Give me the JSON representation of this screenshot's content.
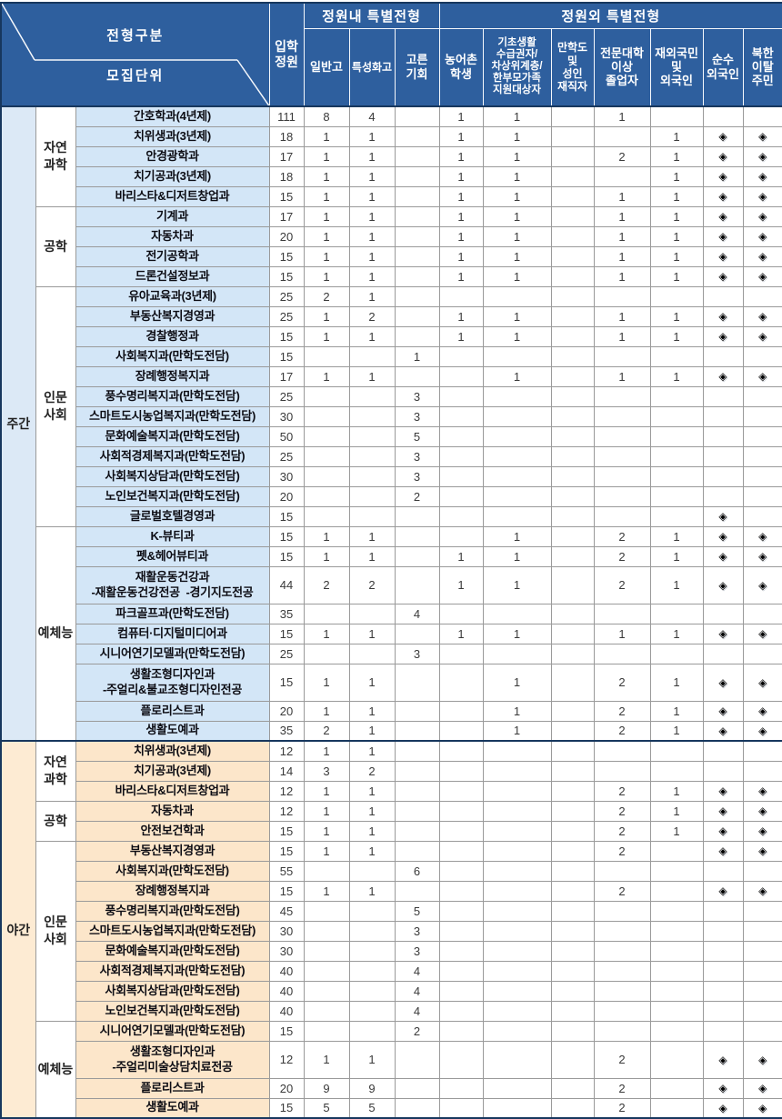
{
  "header": {
    "corner_top": "전형구분",
    "corner_bottom": "모집단위",
    "quota_col": "입학\n정원",
    "group_within": "정원내  특별전형",
    "group_outside": "정원외  특별전형",
    "columns_within": [
      "일반고",
      "특성화고",
      "고른\n기회"
    ],
    "columns_outside": [
      "농어촌\n학생",
      "기초생활\n수급권자/\n차상위계층/\n한부모가족\n지원대상자",
      "만학도\n및\n성인\n재직자",
      "전문대학\n이상\n졸업자",
      "재외국민\n및\n외국인",
      "순수\n외국인",
      "북한\n이탈\n주민"
    ]
  },
  "symbols": {
    "diamond": "◈"
  },
  "colors": {
    "header_blue": "#2e5f9e",
    "day_band": "#dce9f6",
    "day_dept": "#d3e6f7",
    "night_band": "#fdebd3",
    "night_dept": "#fce6ca",
    "frame": "#17375e"
  },
  "sections": [
    {
      "label": "주간",
      "theme": "day",
      "groups": [
        {
          "label": "자연\n과학",
          "rows": [
            {
              "dept": "간호학과(4년제)",
              "values": [
                "111",
                "8",
                "4",
                "",
                "1",
                "1",
                "",
                "1",
                "",
                "",
                ""
              ]
            },
            {
              "dept": "치위생과(3년제)",
              "values": [
                "18",
                "1",
                "1",
                "",
                "1",
                "1",
                "",
                "",
                "1",
                "◈",
                "◈"
              ]
            },
            {
              "dept": "안경광학과",
              "values": [
                "17",
                "1",
                "1",
                "",
                "1",
                "1",
                "",
                "2",
                "1",
                "◈",
                "◈"
              ]
            },
            {
              "dept": "치기공과(3년제)",
              "values": [
                "18",
                "1",
                "1",
                "",
                "1",
                "1",
                "",
                "",
                "1",
                "◈",
                "◈"
              ]
            },
            {
              "dept": "바리스타&디저트창업과",
              "values": [
                "15",
                "1",
                "1",
                "",
                "1",
                "1",
                "",
                "1",
                "1",
                "◈",
                "◈"
              ]
            }
          ]
        },
        {
          "label": "공학",
          "rows": [
            {
              "dept": "기계과",
              "values": [
                "17",
                "1",
                "1",
                "",
                "1",
                "1",
                "",
                "1",
                "1",
                "◈",
                "◈"
              ]
            },
            {
              "dept": "자동차과",
              "values": [
                "20",
                "1",
                "1",
                "",
                "1",
                "1",
                "",
                "1",
                "1",
                "◈",
                "◈"
              ]
            },
            {
              "dept": "전기공학과",
              "values": [
                "15",
                "1",
                "1",
                "",
                "1",
                "1",
                "",
                "1",
                "1",
                "◈",
                "◈"
              ]
            },
            {
              "dept": "드론건설정보과",
              "values": [
                "15",
                "1",
                "1",
                "",
                "1",
                "1",
                "",
                "1",
                "1",
                "◈",
                "◈"
              ]
            }
          ]
        },
        {
          "label": "인문\n사회",
          "rows": [
            {
              "dept": "유아교육과(3년제)",
              "values": [
                "25",
                "2",
                "1",
                "",
                "",
                "",
                "",
                "",
                "",
                "",
                ""
              ]
            },
            {
              "dept": "부동산복지경영과",
              "values": [
                "25",
                "1",
                "2",
                "",
                "1",
                "1",
                "",
                "1",
                "1",
                "◈",
                "◈"
              ]
            },
            {
              "dept": "경찰행정과",
              "values": [
                "15",
                "1",
                "1",
                "",
                "1",
                "1",
                "",
                "1",
                "1",
                "◈",
                "◈"
              ]
            },
            {
              "dept": "사회복지과(만학도전담)",
              "values": [
                "15",
                "",
                "",
                "1",
                "",
                "",
                "",
                "",
                "",
                "",
                ""
              ]
            },
            {
              "dept": "장례행정복지과",
              "values": [
                "17",
                "1",
                "1",
                "",
                "",
                "1",
                "",
                "1",
                "1",
                "◈",
                "◈"
              ]
            },
            {
              "dept": "풍수명리복지과(만학도전담)",
              "values": [
                "25",
                "",
                "",
                "3",
                "",
                "",
                "",
                "",
                "",
                "",
                ""
              ]
            },
            {
              "dept": "스마트도시농업복지과(만학도전담)",
              "values": [
                "30",
                "",
                "",
                "3",
                "",
                "",
                "",
                "",
                "",
                "",
                ""
              ]
            },
            {
              "dept": "문화예술복지과(만학도전담)",
              "values": [
                "50",
                "",
                "",
                "5",
                "",
                "",
                "",
                "",
                "",
                "",
                ""
              ]
            },
            {
              "dept": "사회적경제복지과(만학도전담)",
              "values": [
                "25",
                "",
                "",
                "3",
                "",
                "",
                "",
                "",
                "",
                "",
                ""
              ]
            },
            {
              "dept": "사회복지상담과(만학도전담)",
              "values": [
                "30",
                "",
                "",
                "3",
                "",
                "",
                "",
                "",
                "",
                "",
                ""
              ]
            },
            {
              "dept": "노인보건복지과(만학도전담)",
              "values": [
                "20",
                "",
                "",
                "2",
                "",
                "",
                "",
                "",
                "",
                "",
                ""
              ]
            },
            {
              "dept": "글로벌호텔경영과",
              "values": [
                "15",
                "",
                "",
                "",
                "",
                "",
                "",
                "",
                "",
                "◈",
                ""
              ]
            }
          ]
        },
        {
          "label": "예체능",
          "rows": [
            {
              "dept": "K-뷰티과",
              "values": [
                "15",
                "1",
                "1",
                "",
                "",
                "1",
                "",
                "2",
                "1",
                "◈",
                "◈"
              ]
            },
            {
              "dept": "펫&헤어뷰티과",
              "values": [
                "15",
                "1",
                "1",
                "",
                "1",
                "1",
                "",
                "2",
                "1",
                "◈",
                "◈"
              ]
            },
            {
              "dept": "재활운동건강과\n-재활운동건강전공  -경기지도전공",
              "tall": true,
              "values": [
                "44",
                "2",
                "2",
                "",
                "1",
                "1",
                "",
                "2",
                "1",
                "◈",
                "◈"
              ]
            },
            {
              "dept": "파크골프과(만학도전담)",
              "values": [
                "35",
                "",
                "",
                "4",
                "",
                "",
                "",
                "",
                "",
                "",
                ""
              ]
            },
            {
              "dept": "컴퓨터·디지털미디어과",
              "values": [
                "15",
                "1",
                "1",
                "",
                "1",
                "1",
                "",
                "1",
                "1",
                "◈",
                "◈"
              ]
            },
            {
              "dept": "시니어연기모델과(만학도전담)",
              "values": [
                "25",
                "",
                "",
                "3",
                "",
                "",
                "",
                "",
                "",
                "",
                ""
              ]
            },
            {
              "dept": "생활조형디자인과\n-주얼리&불교조형디자인전공",
              "tall": true,
              "values": [
                "15",
                "1",
                "1",
                "",
                "",
                "1",
                "",
                "2",
                "1",
                "◈",
                "◈"
              ]
            },
            {
              "dept": "플로리스트과",
              "values": [
                "20",
                "1",
                "1",
                "",
                "",
                "1",
                "",
                "2",
                "1",
                "◈",
                "◈"
              ]
            },
            {
              "dept": "생활도예과",
              "values": [
                "35",
                "2",
                "1",
                "",
                "",
                "1",
                "",
                "2",
                "1",
                "◈",
                "◈"
              ]
            }
          ]
        }
      ]
    },
    {
      "label": "야간",
      "theme": "night",
      "groups": [
        {
          "label": "자연\n과학",
          "rows": [
            {
              "dept": "치위생과(3년제)",
              "values": [
                "12",
                "1",
                "1",
                "",
                "",
                "",
                "",
                "",
                "",
                "",
                ""
              ]
            },
            {
              "dept": "치기공과(3년제)",
              "values": [
                "14",
                "3",
                "2",
                "",
                "",
                "",
                "",
                "",
                "",
                "",
                ""
              ]
            },
            {
              "dept": "바리스타&디저트창업과",
              "values": [
                "12",
                "1",
                "1",
                "",
                "",
                "",
                "",
                "2",
                "1",
                "◈",
                "◈"
              ]
            }
          ]
        },
        {
          "label": "공학",
          "rows": [
            {
              "dept": "자동차과",
              "values": [
                "12",
                "1",
                "1",
                "",
                "",
                "",
                "",
                "2",
                "1",
                "◈",
                "◈"
              ]
            },
            {
              "dept": "안전보건학과",
              "values": [
                "15",
                "1",
                "1",
                "",
                "",
                "",
                "",
                "2",
                "1",
                "◈",
                "◈"
              ]
            }
          ]
        },
        {
          "label": "인문\n사회",
          "rows": [
            {
              "dept": "부동산복지경영과",
              "values": [
                "15",
                "1",
                "1",
                "",
                "",
                "",
                "",
                "2",
                "",
                "◈",
                "◈"
              ]
            },
            {
              "dept": "사회복지과(만학도전담)",
              "values": [
                "55",
                "",
                "",
                "6",
                "",
                "",
                "",
                "",
                "",
                "",
                ""
              ]
            },
            {
              "dept": "장례행정복지과",
              "values": [
                "15",
                "1",
                "1",
                "",
                "",
                "",
                "",
                "2",
                "",
                "◈",
                "◈"
              ]
            },
            {
              "dept": "풍수명리복지과(만학도전담)",
              "values": [
                "45",
                "",
                "",
                "5",
                "",
                "",
                "",
                "",
                "",
                "",
                ""
              ]
            },
            {
              "dept": "스마트도시농업복지과(만학도전담)",
              "values": [
                "30",
                "",
                "",
                "3",
                "",
                "",
                "",
                "",
                "",
                "",
                ""
              ]
            },
            {
              "dept": "문화예술복지과(만학도전담)",
              "values": [
                "30",
                "",
                "",
                "3",
                "",
                "",
                "",
                "",
                "",
                "",
                ""
              ]
            },
            {
              "dept": "사회적경제복지과(만학도전담)",
              "values": [
                "40",
                "",
                "",
                "4",
                "",
                "",
                "",
                "",
                "",
                "",
                ""
              ]
            },
            {
              "dept": "사회복지상담과(만학도전담)",
              "values": [
                "40",
                "",
                "",
                "4",
                "",
                "",
                "",
                "",
                "",
                "",
                ""
              ]
            },
            {
              "dept": "노인보건복지과(만학도전담)",
              "values": [
                "40",
                "",
                "",
                "4",
                "",
                "",
                "",
                "",
                "",
                "",
                ""
              ]
            }
          ]
        },
        {
          "label": "예체능",
          "rows": [
            {
              "dept": "시니어연기모델과(만학도전담)",
              "values": [
                "15",
                "",
                "",
                "2",
                "",
                "",
                "",
                "",
                "",
                "",
                ""
              ]
            },
            {
              "dept": "생활조형디자인과\n-주얼리미술상담치료전공",
              "tall": true,
              "values": [
                "12",
                "1",
                "1",
                "",
                "",
                "",
                "",
                "2",
                "",
                "◈",
                "◈"
              ]
            },
            {
              "dept": "플로리스트과",
              "values": [
                "20",
                "9",
                "9",
                "",
                "",
                "",
                "",
                "2",
                "",
                "◈",
                "◈"
              ]
            },
            {
              "dept": "생활도예과",
              "values": [
                "15",
                "5",
                "5",
                "",
                "",
                "",
                "",
                "2",
                "",
                "◈",
                "◈"
              ]
            }
          ]
        }
      ]
    }
  ]
}
